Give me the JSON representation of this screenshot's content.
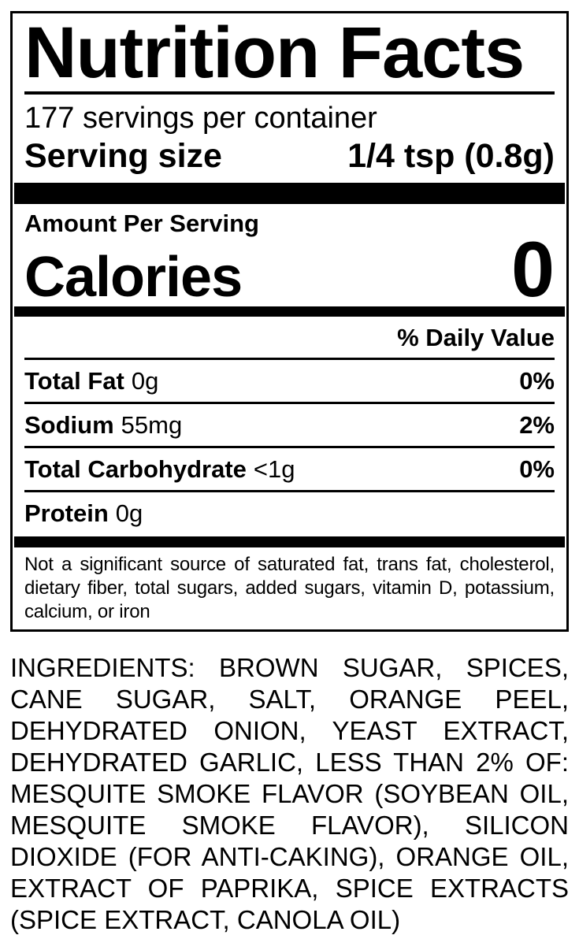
{
  "colors": {
    "text": "#000000",
    "background": "#ffffff",
    "border": "#000000"
  },
  "label": {
    "title": "Nutrition Facts",
    "servings_per_container": "177 servings per container",
    "serving_size": {
      "label": "Serving size",
      "value": "1/4 tsp (0.8g)"
    },
    "amount_per_serving": "Amount Per Serving",
    "calories": {
      "label": "Calories",
      "value": "0"
    },
    "daily_value_header": "% Daily Value",
    "nutrients": [
      {
        "name": "Total Fat",
        "amount": "0g",
        "daily_value": "0%"
      },
      {
        "name": "Sodium",
        "amount": "55mg",
        "daily_value": "2%"
      },
      {
        "name": "Total Carbohydrate",
        "amount": "<1g",
        "daily_value": "0%"
      },
      {
        "name": "Protein",
        "amount": "0g",
        "daily_value": ""
      }
    ],
    "footnote": "Not a significant source of saturated fat, trans fat, cholesterol, dietary fiber, total sugars, added sugars, vitamin D, potassium, calcium, or iron"
  },
  "ingredients": "INGREDIENTS: BROWN SUGAR, SPICES, CANE SUGAR, SALT, ORANGE PEEL, DEHYDRATED ONION, YEAST EXTRACT, DEHYDRATED GARLIC, LESS THAN 2% OF: MESQUITE SMOKE FLAVOR (SOYBEAN OIL, MESQUITE SMOKE FLAVOR), SILICON DIOXIDE (FOR ANTI-CAKING), ORANGE OIL, EXTRACT OF PAPRIKA, SPICE EXTRACTS (SPICE EXTRACT, CANOLA OIL)"
}
